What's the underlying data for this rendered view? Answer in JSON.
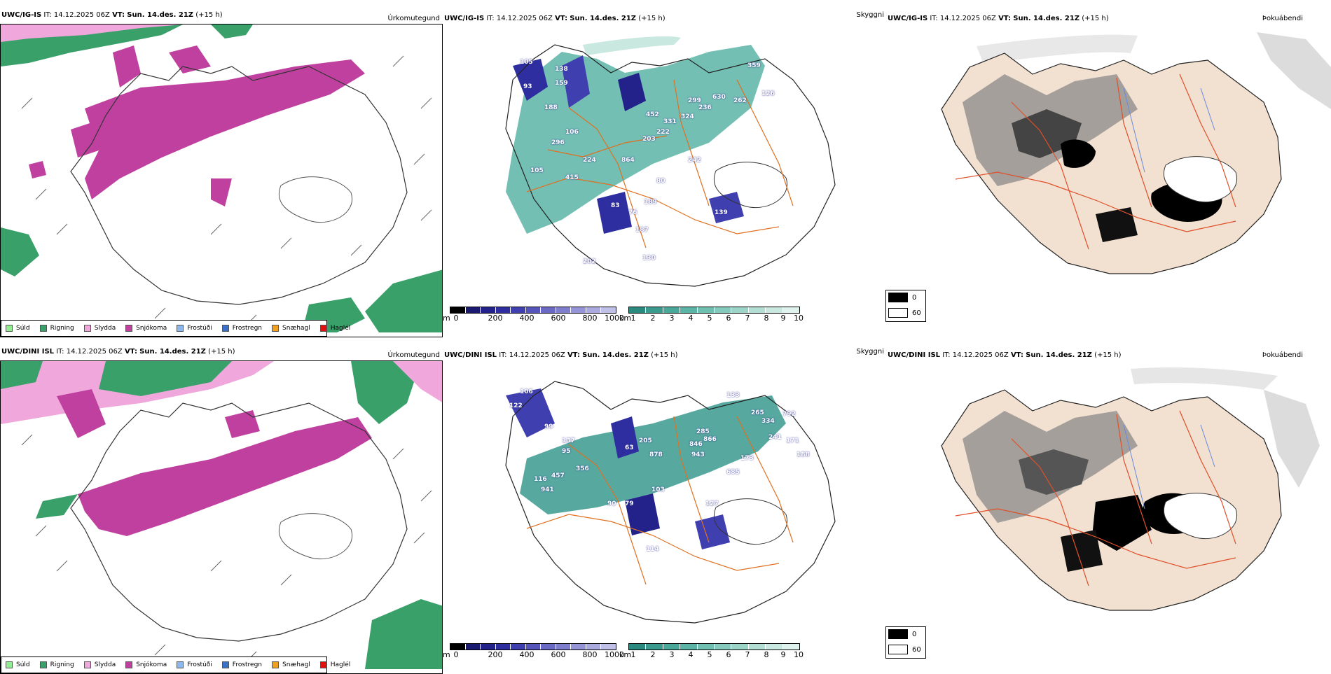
{
  "rows": [
    {
      "model": "UWC/IG-IS",
      "it_label": "IT:",
      "it_value": "14.12.2025 06Z",
      "vt_label": "VT:",
      "vt_value": "Sun. 14.des. 21Z",
      "lead": "(+15 h)"
    },
    {
      "model": "UWC/DINI ISL",
      "it_label": "IT:",
      "it_value": "14.12.2025 06Z",
      "vt_label": "VT:",
      "vt_value": "Sun. 14.des. 21Z",
      "lead": "(+15 h)"
    }
  ],
  "panel_titles": {
    "precip_type": "Úrkomutegund",
    "cloud_base": "Skyggni",
    "fog": "Þokuábendi"
  },
  "precip_legend": [
    {
      "label": "Súld",
      "color": "#90ee90"
    },
    {
      "label": "Rigning",
      "color": "#3aa06a"
    },
    {
      "label": "Slydda",
      "color": "#f0a8dc"
    },
    {
      "label": "Snjókoma",
      "color": "#c040a0"
    },
    {
      "label": "Frostúði",
      "color": "#8cb8f0"
    },
    {
      "label": "Frostregn",
      "color": "#3a70c8"
    },
    {
      "label": "Snæhagl",
      "color": "#f0a020"
    },
    {
      "label": "Haglél",
      "color": "#e01010"
    }
  ],
  "height_colorbar": {
    "unit": "m",
    "ticks": [
      "0",
      "200",
      "400",
      "600",
      "800",
      "1000"
    ],
    "colors": [
      "#000000",
      "#1a1a70",
      "#22228a",
      "#2e2ea0",
      "#3f3fb0",
      "#5555bc",
      "#6a6ac4",
      "#7e7ecc",
      "#9494d6",
      "#aaaade",
      "#c0c0e8"
    ]
  },
  "visibility_colorbar": {
    "unit": "km",
    "ticks": [
      "1",
      "2",
      "3",
      "4",
      "5",
      "6",
      "7",
      "8",
      "9",
      "10"
    ],
    "colors": [
      "#2a8a80",
      "#3a9a8e",
      "#4aa89a",
      "#5cb4a6",
      "#70c0b2",
      "#86cabe",
      "#9cd4c8",
      "#b2ded4",
      "#c8e8e0",
      "#e0f2ee"
    ]
  },
  "fog_legend": [
    {
      "label": "0",
      "color": "#000000"
    },
    {
      "label": "60",
      "color": "#ffffff"
    }
  ],
  "labels_top": [
    "105",
    "138",
    "159",
    "188",
    "106",
    "296",
    "105",
    "415",
    "224",
    "864",
    "452",
    "331",
    "222",
    "203",
    "324",
    "299",
    "236",
    "630",
    "262",
    "359",
    "126",
    "242",
    "80",
    "139",
    "83",
    "189",
    "76",
    "187",
    "202",
    "130",
    "93"
  ],
  "labels_bottom": [
    "106",
    "122",
    "99",
    "137",
    "95",
    "457",
    "116",
    "941",
    "356",
    "878",
    "943",
    "846",
    "866",
    "285",
    "205",
    "173",
    "685",
    "265",
    "334",
    "792",
    "241",
    "171",
    "188",
    "90",
    "79",
    "103",
    "127",
    "114",
    "63",
    "133"
  ]
}
